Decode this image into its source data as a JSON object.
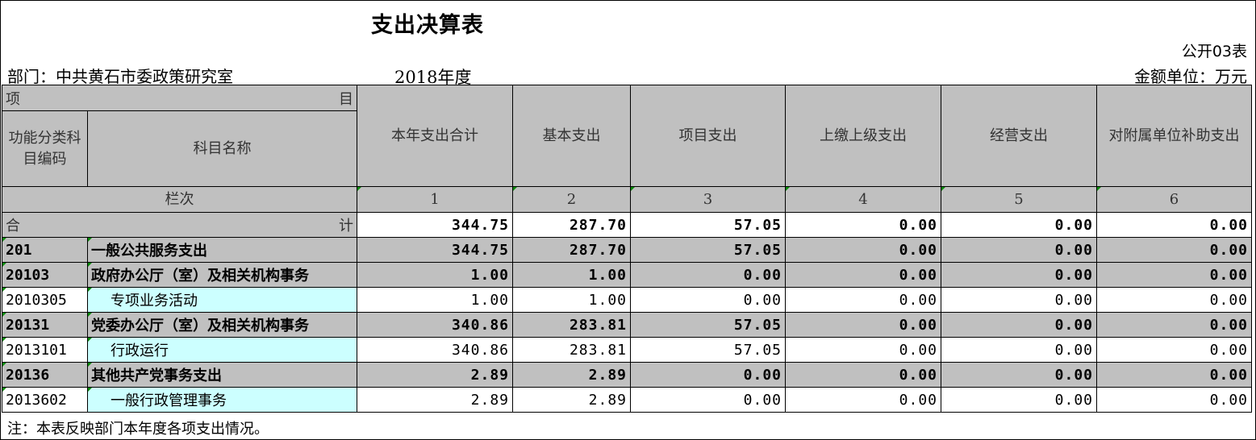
{
  "title": "支出决算表",
  "form_no": "公开03表",
  "department": "部门：中共黄石市委政策研究室",
  "year": "2018年度",
  "unit": "金额单位：万元",
  "header": {
    "item_left": "项",
    "item_right": "目",
    "code_label": "功能分类科目编码",
    "name_label": "科目名称",
    "columns": [
      "本年支出合计",
      "基本支出",
      "项目支出",
      "上缴上级支出",
      "经营支出",
      "对附属单位补助支出"
    ],
    "lanci": "栏次",
    "col_numbers": [
      "1",
      "2",
      "3",
      "4",
      "5",
      "6"
    ]
  },
  "total": {
    "left": "合",
    "right": "计",
    "values": [
      "344.75",
      "287.70",
      "57.05",
      "0.00",
      "0.00",
      "0.00"
    ]
  },
  "rows": [
    {
      "code": "201",
      "name": "一般公共服务支出",
      "values": [
        "344.75",
        "287.70",
        "57.05",
        "0.00",
        "0.00",
        "0.00"
      ]
    },
    {
      "code": "20103",
      "name": "政府办公厅（室）及相关机构事务",
      "values": [
        "1.00",
        "1.00",
        "0.00",
        "0.00",
        "0.00",
        "0.00"
      ]
    },
    {
      "code": "2010305",
      "name": "专项业务活动",
      "values": [
        "1.00",
        "1.00",
        "0.00",
        "0.00",
        "0.00",
        "0.00"
      ]
    },
    {
      "code": "20131",
      "name": "党委办公厅（室）及相关机构事务",
      "values": [
        "340.86",
        "283.81",
        "57.05",
        "0.00",
        "0.00",
        "0.00"
      ]
    },
    {
      "code": "2013101",
      "name": "行政运行",
      "values": [
        "340.86",
        "283.81",
        "57.05",
        "0.00",
        "0.00",
        "0.00"
      ]
    },
    {
      "code": "20136",
      "name": "其他共产党事务支出",
      "values": [
        "2.89",
        "2.89",
        "0.00",
        "0.00",
        "0.00",
        "0.00"
      ]
    },
    {
      "code": "2013602",
      "name": "一般行政管理事务",
      "values": [
        "2.89",
        "2.89",
        "0.00",
        "0.00",
        "0.00",
        "0.00"
      ]
    }
  ],
  "note": "注：本表反映部门本年度各项支出情况。"
}
